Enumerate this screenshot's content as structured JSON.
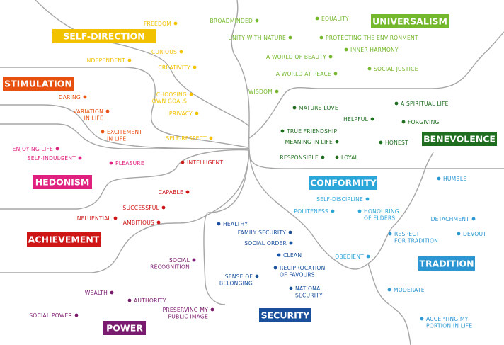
{
  "colors": {
    "self_direction": "#f2c200",
    "universalism": "#74b82d",
    "stimulation": "#e8500f",
    "benevolence": "#1f6e1f",
    "hedonism": "#e0207f",
    "achievement": "#cf1616",
    "conformity": "#2ba6d9",
    "tradition": "#2b96d2",
    "security": "#1a4f9c",
    "power": "#7a1a6e",
    "connector": "#a6a6a6"
  },
  "categories": [
    {
      "id": "self_direction",
      "label": "SELF-DIRECTION",
      "color": "#f2c200",
      "dark_text": false
    },
    {
      "id": "universalism",
      "label": "UNIVERSALISM",
      "color": "#74b82d"
    },
    {
      "id": "stimulation",
      "label": "STIMULATION",
      "color": "#e8500f"
    },
    {
      "id": "benevolence",
      "label": "BENEVOLENCE",
      "color": "#1f6e1f"
    },
    {
      "id": "hedonism",
      "label": "HEDONISM",
      "color": "#e0207f"
    },
    {
      "id": "achievement",
      "label": "ACHIEVEMENT",
      "color": "#cf1616"
    },
    {
      "id": "conformity",
      "label": "CONFORMITY",
      "color": "#2ba6d9"
    },
    {
      "id": "tradition",
      "label": "TRADITION",
      "color": "#2b96d2"
    },
    {
      "id": "security",
      "label": "SECURITY",
      "color": "#1a4f9c"
    },
    {
      "id": "power",
      "label": "POWER",
      "color": "#7a1a6e"
    }
  ],
  "values": {
    "self_direction": [
      [
        "FREEDOM"
      ],
      [
        "INDEPENDENT"
      ],
      [
        "CURIOUS"
      ],
      [
        "CREATIVITY"
      ],
      [
        "CHOOSING",
        "OWN GOALS"
      ],
      [
        "PRIVACY"
      ],
      [
        "SELF-RESPECT"
      ]
    ],
    "universalism": [
      [
        "BROADMINDED"
      ],
      [
        "EQUALITY"
      ],
      [
        "UNITY WITH NATURE"
      ],
      [
        "PROTECTING THE ENVIRONMENT"
      ],
      [
        "INNER HARMONY"
      ],
      [
        "A WORLD OF BEAUTY"
      ],
      [
        "A WORLD AT PEACE"
      ],
      [
        "SOCIAL JUSTICE"
      ],
      [
        "WISDOM"
      ]
    ],
    "stimulation": [
      [
        "DARING"
      ],
      [
        "VARIATION",
        "IN LIFE"
      ],
      [
        "EXCITEMENT",
        "IN LIFE"
      ]
    ],
    "benevolence": [
      [
        "A SPIRITUAL LIFE"
      ],
      [
        "MATURE LOVE"
      ],
      [
        "HELPFUL"
      ],
      [
        "FORGIVING"
      ],
      [
        "TRUE FRIENDSHIP"
      ],
      [
        "MEANING IN LIFE"
      ],
      [
        "HONEST"
      ],
      [
        "RESPONSIBLE"
      ],
      [
        "LOYAL"
      ]
    ],
    "hedonism": [
      [
        "ENJOYING LIFE"
      ],
      [
        "SELF-INDULGENT"
      ],
      [
        "PLEASURE"
      ]
    ],
    "achievement": [
      [
        "INTELLIGENT"
      ],
      [
        "CAPABLE"
      ],
      [
        "SUCCESSFUL"
      ],
      [
        "INFLUENTIAL"
      ],
      [
        "AMBITIOUS"
      ]
    ],
    "conformity": [
      [
        "SELF-DISCIPLINE"
      ],
      [
        "POLITENESS"
      ],
      [
        "HONOURING",
        "OF ELDERS"
      ],
      [
        "OBEDIENT"
      ]
    ],
    "tradition": [
      [
        "HUMBLE"
      ],
      [
        "DETACHMENT"
      ],
      [
        "RESPECT",
        "FOR TRADITION"
      ],
      [
        "DEVOUT"
      ],
      [
        "MODERATE"
      ],
      [
        "ACCEPTING MY",
        "PORTION IN LIFE"
      ]
    ],
    "security": [
      [
        "HEALTHY"
      ],
      [
        "FAMILY SECURITY"
      ],
      [
        "SOCIAL ORDER"
      ],
      [
        "CLEAN"
      ],
      [
        "RECIPROCATION",
        "OF FAVOURS"
      ],
      [
        "SENSE OF",
        "BELONGING"
      ],
      [
        "NATIONAL",
        "SECURITY"
      ]
    ],
    "power": [
      [
        "SOCIAL",
        "RECOGNITION"
      ],
      [
        "WEALTH"
      ],
      [
        "AUTHORITY"
      ],
      [
        "PRESERVING MY",
        "PUBLIC IMAGE"
      ],
      [
        "SOCIAL POWER"
      ]
    ]
  }
}
